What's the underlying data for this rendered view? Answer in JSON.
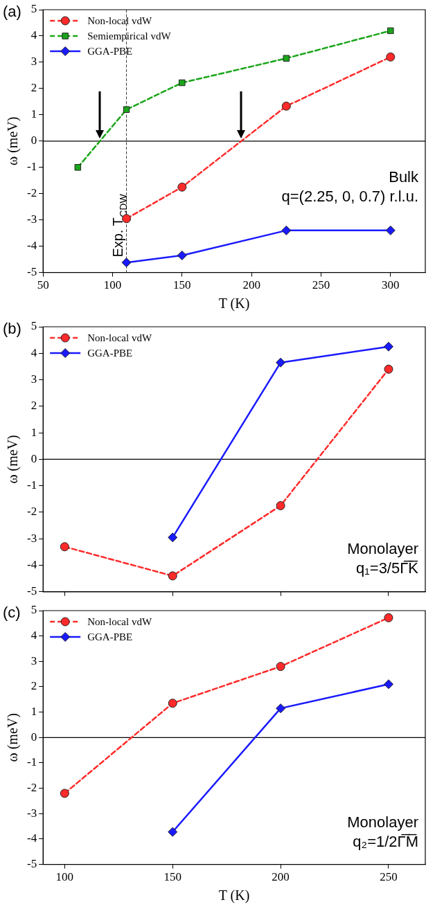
{
  "chart_data": [
    {
      "type": "line",
      "title": "(a)",
      "xlabel": "T (K)",
      "ylabel": "ω (meV)",
      "xlim": [
        50,
        325
      ],
      "ylim": [
        -5,
        5
      ],
      "xticks": [
        50,
        100,
        150,
        200,
        250,
        300
      ],
      "yticks": [
        -5,
        -4,
        -3,
        -2,
        -1,
        0,
        1,
        2,
        3,
        4,
        5
      ],
      "grid": false,
      "legend": "top left",
      "series": [
        {
          "name": "Non-local vdW",
          "color": "#ff2a2a",
          "marker": "circle",
          "line_style": "dashed",
          "x": [
            110,
            150,
            225,
            300
          ],
          "values": [
            -2.95,
            -1.75,
            1.33,
            3.2
          ]
        },
        {
          "name": "Semiempirical vdW",
          "color": "#1aa51a",
          "marker": "square",
          "line_style": "dashed",
          "x": [
            75,
            110,
            150,
            225,
            300
          ],
          "values": [
            -1.0,
            1.2,
            2.22,
            3.15,
            4.2
          ]
        },
        {
          "name": "GGA-PBE",
          "color": "#1a1aff",
          "marker": "diamond",
          "line_style": "solid",
          "x": [
            110,
            150,
            225,
            300
          ],
          "values": [
            -4.62,
            -4.35,
            -3.4,
            -3.4
          ]
        }
      ],
      "ref_lines": [
        {
          "axis": "y",
          "value": 0,
          "color": "#000000",
          "line_style": "solid"
        },
        {
          "axis": "x",
          "value": 110,
          "label": "Exp. T$_{CDW}$",
          "color": "#000000",
          "line_style": "dashed"
        }
      ],
      "annotations": [
        "Bulk",
        "q=(2.25, 0, 0.7) r.l.u."
      ]
    },
    {
      "type": "line",
      "title": "(b)",
      "ylabel": "ω (meV)",
      "xlim": [
        90,
        267
      ],
      "ylim": [
        -5,
        5
      ],
      "xticks": [
        100,
        150,
        200,
        250
      ],
      "yticks": [
        -5,
        -4,
        -3,
        -2,
        -1,
        0,
        1,
        2,
        3,
        4,
        5
      ],
      "grid": false,
      "legend": "top left",
      "tick_labels": "y",
      "series": [
        {
          "name": "Non-local vdW",
          "color": "#ff2a2a",
          "marker": "circle",
          "line_style": "dashed",
          "x": [
            100,
            150,
            200,
            250
          ],
          "values": [
            -3.3,
            -4.4,
            -1.75,
            3.4
          ]
        },
        {
          "name": "GGA-PBE",
          "color": "#1a1aff",
          "marker": "diamond",
          "line_style": "solid",
          "x": [
            150,
            200,
            250
          ],
          "values": [
            -2.95,
            3.65,
            4.25
          ]
        }
      ],
      "ref_lines": [
        {
          "axis": "y",
          "value": 0,
          "color": "#000000",
          "line_style": "solid"
        }
      ],
      "annotations": [
        "Monolayer",
        "q₁=3/5Γ̅K̅"
      ]
    },
    {
      "type": "line",
      "title": "(c)",
      "xlabel": "T (K)",
      "ylabel": "ω (meV)",
      "xlim": [
        90,
        267
      ],
      "ylim": [
        -5,
        5
      ],
      "xticks": [
        100,
        150,
        200,
        250
      ],
      "yticks": [
        -5,
        -4,
        -3,
        -2,
        -1,
        0,
        1,
        2,
        3,
        4,
        5
      ],
      "grid": false,
      "legend": "top left",
      "series": [
        {
          "name": "Non-local vdW",
          "color": "#ff2a2a",
          "marker": "circle",
          "line_style": "dashed",
          "x": [
            100,
            150,
            200,
            250
          ],
          "values": [
            -2.2,
            1.35,
            2.8,
            4.72
          ]
        },
        {
          "name": "GGA-PBE",
          "color": "#1a1aff",
          "marker": "diamond",
          "line_style": "solid",
          "x": [
            150,
            200,
            250
          ],
          "values": [
            -3.72,
            1.15,
            2.1
          ]
        }
      ],
      "ref_lines": [
        {
          "axis": "y",
          "value": 0,
          "color": "#000000",
          "line_style": "solid"
        }
      ],
      "annotations": [
        "Monolayer",
        "q₂=1/2Γ̅M̅"
      ]
    }
  ]
}
